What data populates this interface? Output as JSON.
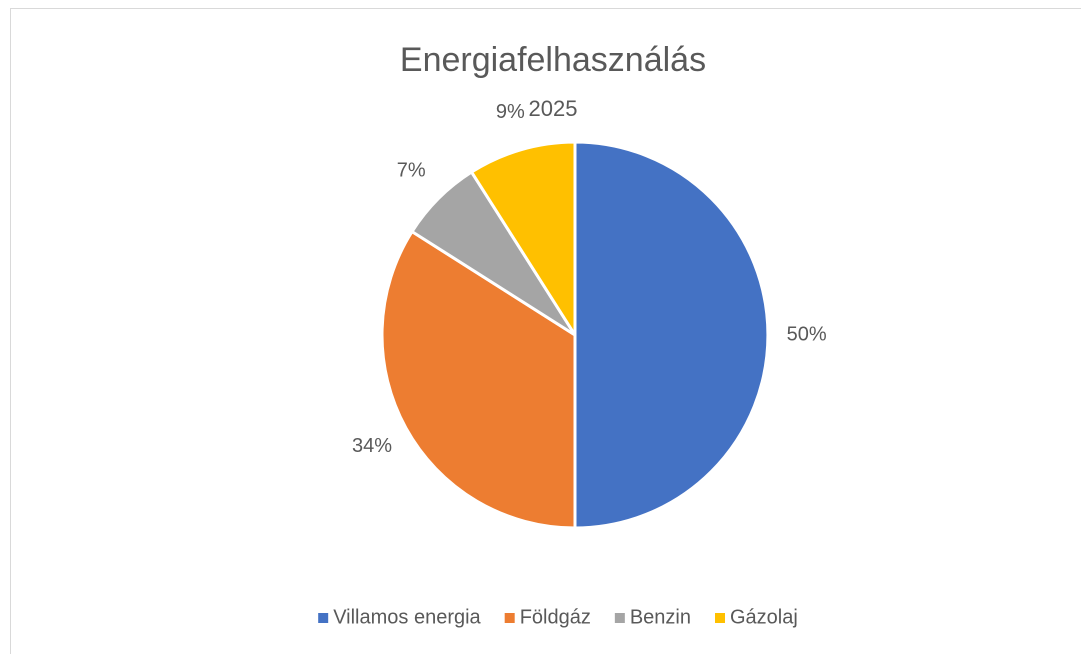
{
  "chart_data": {
    "type": "pie",
    "title": "Energiafelhasználás",
    "subtitle": "2025",
    "categories": [
      "Villamos energia",
      "Földgáz",
      "Benzin",
      "Gázolaj"
    ],
    "values": [
      50,
      34,
      7,
      9
    ],
    "value_labels": [
      "50%",
      "34%",
      "7%",
      "9%"
    ],
    "colors": [
      "#4472c4",
      "#ed7d31",
      "#a5a5a5",
      "#ffc000"
    ],
    "legend": "bottom"
  }
}
